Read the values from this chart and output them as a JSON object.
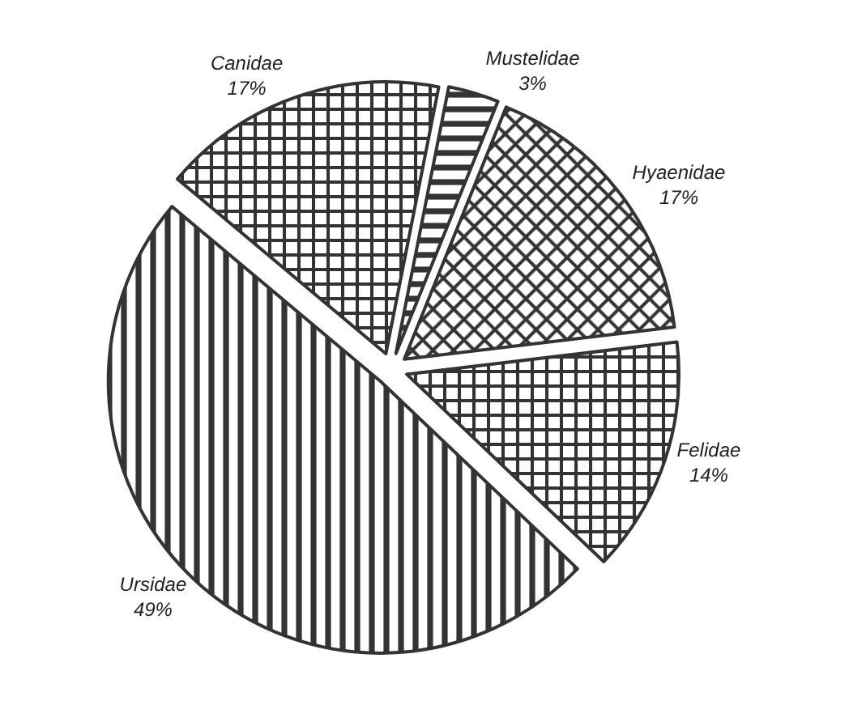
{
  "chart_data": {
    "type": "pie",
    "categories": [
      "Canidae",
      "Mustelidae",
      "Hyaenidae",
      "Felidae",
      "Ursidae"
    ],
    "values": [
      17,
      3,
      17,
      14,
      49
    ],
    "value_labels": [
      "17%",
      "3%",
      "17%",
      "14%",
      "49%"
    ],
    "colors": [
      "#333333",
      "#333333",
      "#333333",
      "#333333",
      "#333333"
    ],
    "legend": false
  }
}
